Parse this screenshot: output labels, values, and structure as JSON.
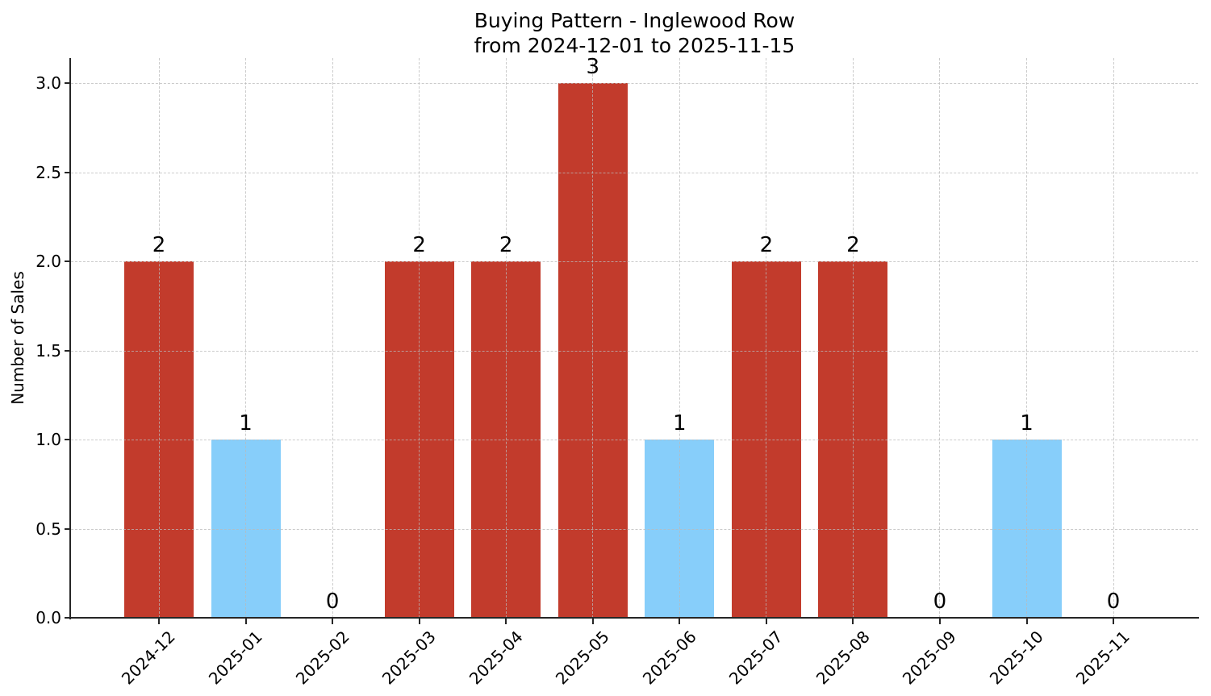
{
  "title": {
    "line1": "Buying Pattern - Inglewood Row",
    "line2": "from 2024-12-01 to 2025-11-15"
  },
  "chart_data": {
    "type": "bar",
    "title": "Buying Pattern - Inglewood Row",
    "subtitle": "from 2024-12-01 to 2025-11-15",
    "xlabel": "",
    "ylabel": "Number of Sales",
    "categories": [
      "2024-12",
      "2025-01",
      "2025-02",
      "2025-03",
      "2025-04",
      "2025-05",
      "2025-06",
      "2025-07",
      "2025-08",
      "2025-09",
      "2025-10",
      "2025-11"
    ],
    "values": [
      2,
      1,
      0,
      2,
      2,
      3,
      1,
      2,
      2,
      0,
      1,
      0
    ],
    "value_labels": [
      "2",
      "1",
      "0",
      "2",
      "2",
      "3",
      "1",
      "2",
      "2",
      "0",
      "1",
      "0"
    ],
    "bar_colors": [
      "#c23b2c",
      "#87cefa",
      "#c23b2c",
      "#c23b2c",
      "#c23b2c",
      "#c23b2c",
      "#87cefa",
      "#c23b2c",
      "#c23b2c",
      "#c23b2c",
      "#87cefa",
      "#c23b2c"
    ],
    "colors": {
      "high_sales": "#c23b2c",
      "single_sale": "#87cefa"
    },
    "yticks": [
      "0.0",
      "0.5",
      "1.0",
      "1.5",
      "2.0",
      "2.5",
      "3.0"
    ],
    "ytick_values": [
      0,
      0.5,
      1,
      1.5,
      2,
      2.5,
      3
    ],
    "ylim": [
      0,
      3.14
    ],
    "xtick_rotation": 45,
    "grid": true,
    "legend": false
  }
}
